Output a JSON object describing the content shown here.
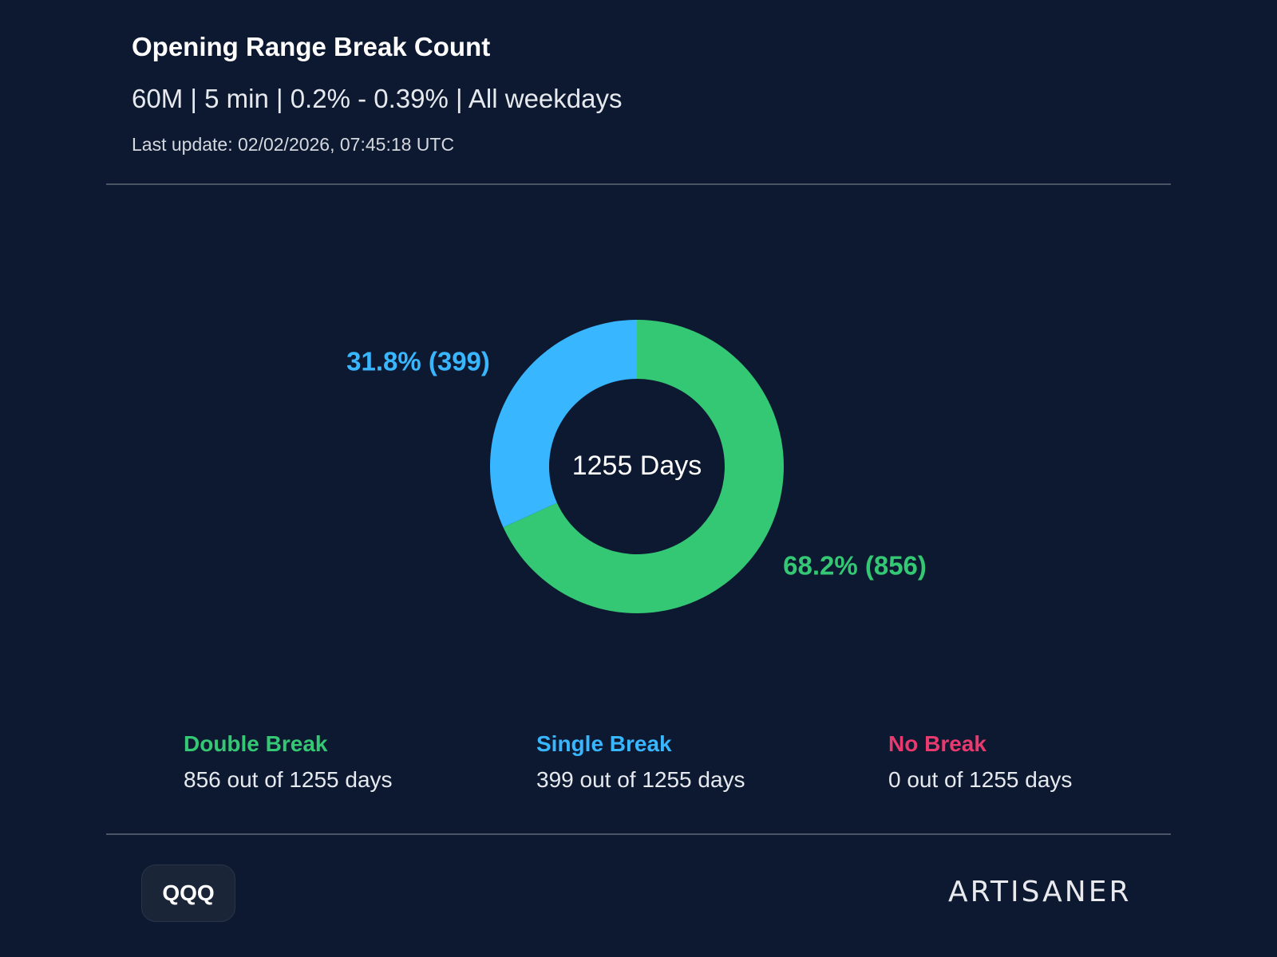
{
  "header": {
    "title": "Opening Range Break Count",
    "subtitle": "60M | 5 min | 0.2% - 0.39% | All weekdays",
    "last_update": "Last update: 02/02/2026, 07:45:18 UTC"
  },
  "chart_data": {
    "type": "pie",
    "variant": "donut",
    "center_label": "1255 Days",
    "total": 1255,
    "slices": [
      {
        "name": "Double Break",
        "value": 856,
        "percent": 68.2,
        "label": "68.2% (856)",
        "color": "#34c774"
      },
      {
        "name": "Single Break",
        "value": 399,
        "percent": 31.8,
        "label": "31.8% (399)",
        "color": "#38b6ff"
      },
      {
        "name": "No Break",
        "value": 0,
        "percent": 0,
        "label": "",
        "color": "#e83a6e"
      }
    ]
  },
  "legend": [
    {
      "name": "Double Break",
      "desc": "856 out of 1255 days",
      "color": "#34c774"
    },
    {
      "name": "Single Break",
      "desc": "399 out of 1255 days",
      "color": "#38b6ff"
    },
    {
      "name": "No Break",
      "desc": "0 out of 1255 days",
      "color": "#e83a6e"
    }
  ],
  "footer": {
    "ticker": "QQQ",
    "brand": "ARTISANER"
  },
  "colors": {
    "background": "#0d1930",
    "divider": "#4a5566"
  }
}
